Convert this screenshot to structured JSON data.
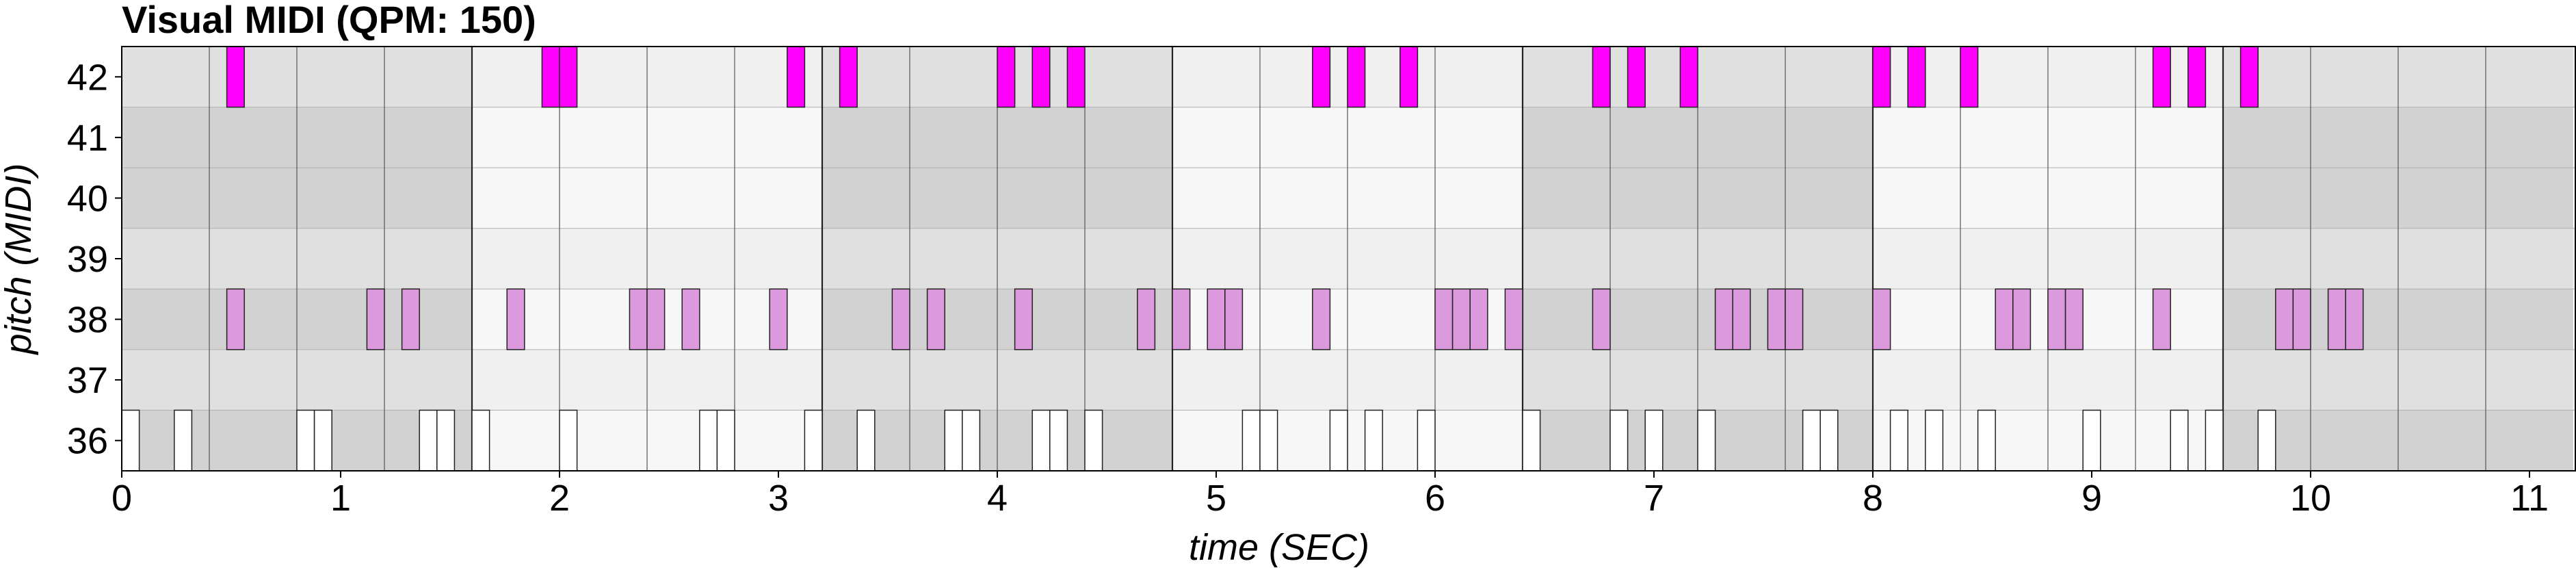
{
  "chart_data": {
    "type": "piano-roll",
    "title": "Visual MIDI (QPM: 150)",
    "xlabel": "time (SEC)",
    "ylabel": "pitch (MIDI)",
    "xlim": [
      0,
      11.2
    ],
    "x_ticks": [
      0,
      1,
      2,
      3,
      4,
      5,
      6,
      7,
      8,
      9,
      10,
      11
    ],
    "pitches": [
      36,
      37,
      38,
      39,
      40,
      41,
      42
    ],
    "bar_length_sec": 1.6,
    "beat_length_sec": 0.4,
    "white_key_pitches": [
      36,
      38,
      40,
      41
    ],
    "colors": {
      "36": "#ffffff",
      "38": "#dd99dd",
      "42": "#ff00ff",
      "outline": "#222222",
      "bar_band_dark": "#d2d2d2",
      "bar_band_light": "#f7f7f7",
      "black_key_overlay": "#ebebeb"
    },
    "series": [
      {
        "pitch": 42,
        "duration": 0.08,
        "starts": [
          0.48,
          1.92,
          2.0,
          3.04,
          3.28,
          4.0,
          4.16,
          4.32,
          5.44,
          5.6,
          5.84,
          6.72,
          6.88,
          7.12,
          8.0,
          8.16,
          8.4,
          9.28,
          9.44,
          9.68
        ]
      },
      {
        "pitch": 38,
        "duration": 0.08,
        "starts": [
          0.48,
          1.12,
          1.28,
          1.76,
          2.32,
          2.4,
          2.56,
          2.96,
          3.52,
          3.68,
          4.08,
          4.64,
          4.8,
          4.96,
          5.04,
          5.44,
          6.0,
          6.08,
          6.16,
          6.32,
          6.72,
          7.28,
          7.36,
          7.52,
          7.6,
          8.0,
          8.56,
          8.64,
          8.8,
          8.88,
          9.28,
          9.84,
          9.92,
          10.08,
          10.16
        ]
      },
      {
        "pitch": 36,
        "duration": 0.08,
        "starts": [
          0.0,
          0.24,
          0.8,
          0.88,
          1.36,
          1.44,
          1.6,
          2.0,
          2.64,
          2.72,
          3.12,
          3.36,
          3.76,
          3.84,
          4.16,
          4.24,
          4.4,
          5.12,
          5.2,
          5.52,
          5.68,
          5.92,
          6.4,
          6.8,
          6.96,
          7.2,
          7.68,
          7.76,
          8.08,
          8.24,
          8.48,
          8.96,
          9.36,
          9.52,
          9.76
        ]
      }
    ]
  }
}
